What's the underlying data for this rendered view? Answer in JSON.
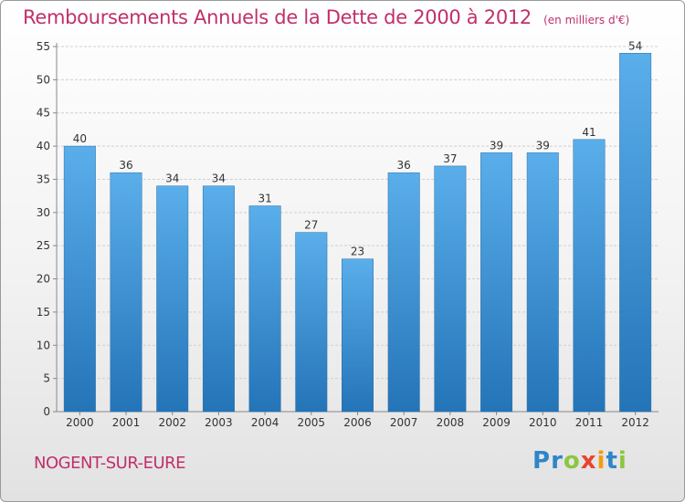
{
  "title": "Remboursements Annuels de la Dette de 2000 à 2012",
  "subtitle": "(en milliers d'€)",
  "commune": "NOGENT-SUR-EURE",
  "logo": {
    "text": "Proxiti",
    "letters": [
      {
        "char": "P",
        "color": "#2e86c8"
      },
      {
        "char": "r",
        "color": "#2e86c8"
      },
      {
        "char": "o",
        "color": "#8cc63f"
      },
      {
        "char": "x",
        "color": "#e8442e"
      },
      {
        "char": "i",
        "color": "#f39c12"
      },
      {
        "char": "t",
        "color": "#2e86c8"
      },
      {
        "char": "i",
        "color": "#8cc63f"
      }
    ]
  },
  "colors": {
    "title": "#c0306a",
    "bar_top": "#5aaeea",
    "bar_bottom": "#2474b8",
    "grid": "#d0d0d0"
  },
  "chart_data": {
    "type": "bar",
    "title": "Remboursements Annuels de la Dette de 2000 à 2012",
    "subtitle": "(en milliers d'€)",
    "xlabel": "",
    "ylabel": "",
    "categories": [
      "2000",
      "2001",
      "2002",
      "2003",
      "2004",
      "2005",
      "2006",
      "2007",
      "2008",
      "2009",
      "2010",
      "2011",
      "2012"
    ],
    "values": [
      40,
      36,
      34,
      34,
      31,
      27,
      23,
      36,
      37,
      39,
      39,
      41,
      54
    ],
    "ylim": [
      0,
      55
    ],
    "yticks": [
      0,
      5,
      10,
      15,
      20,
      25,
      30,
      35,
      40,
      45,
      50,
      55
    ],
    "grid": true,
    "data_labels": true
  }
}
